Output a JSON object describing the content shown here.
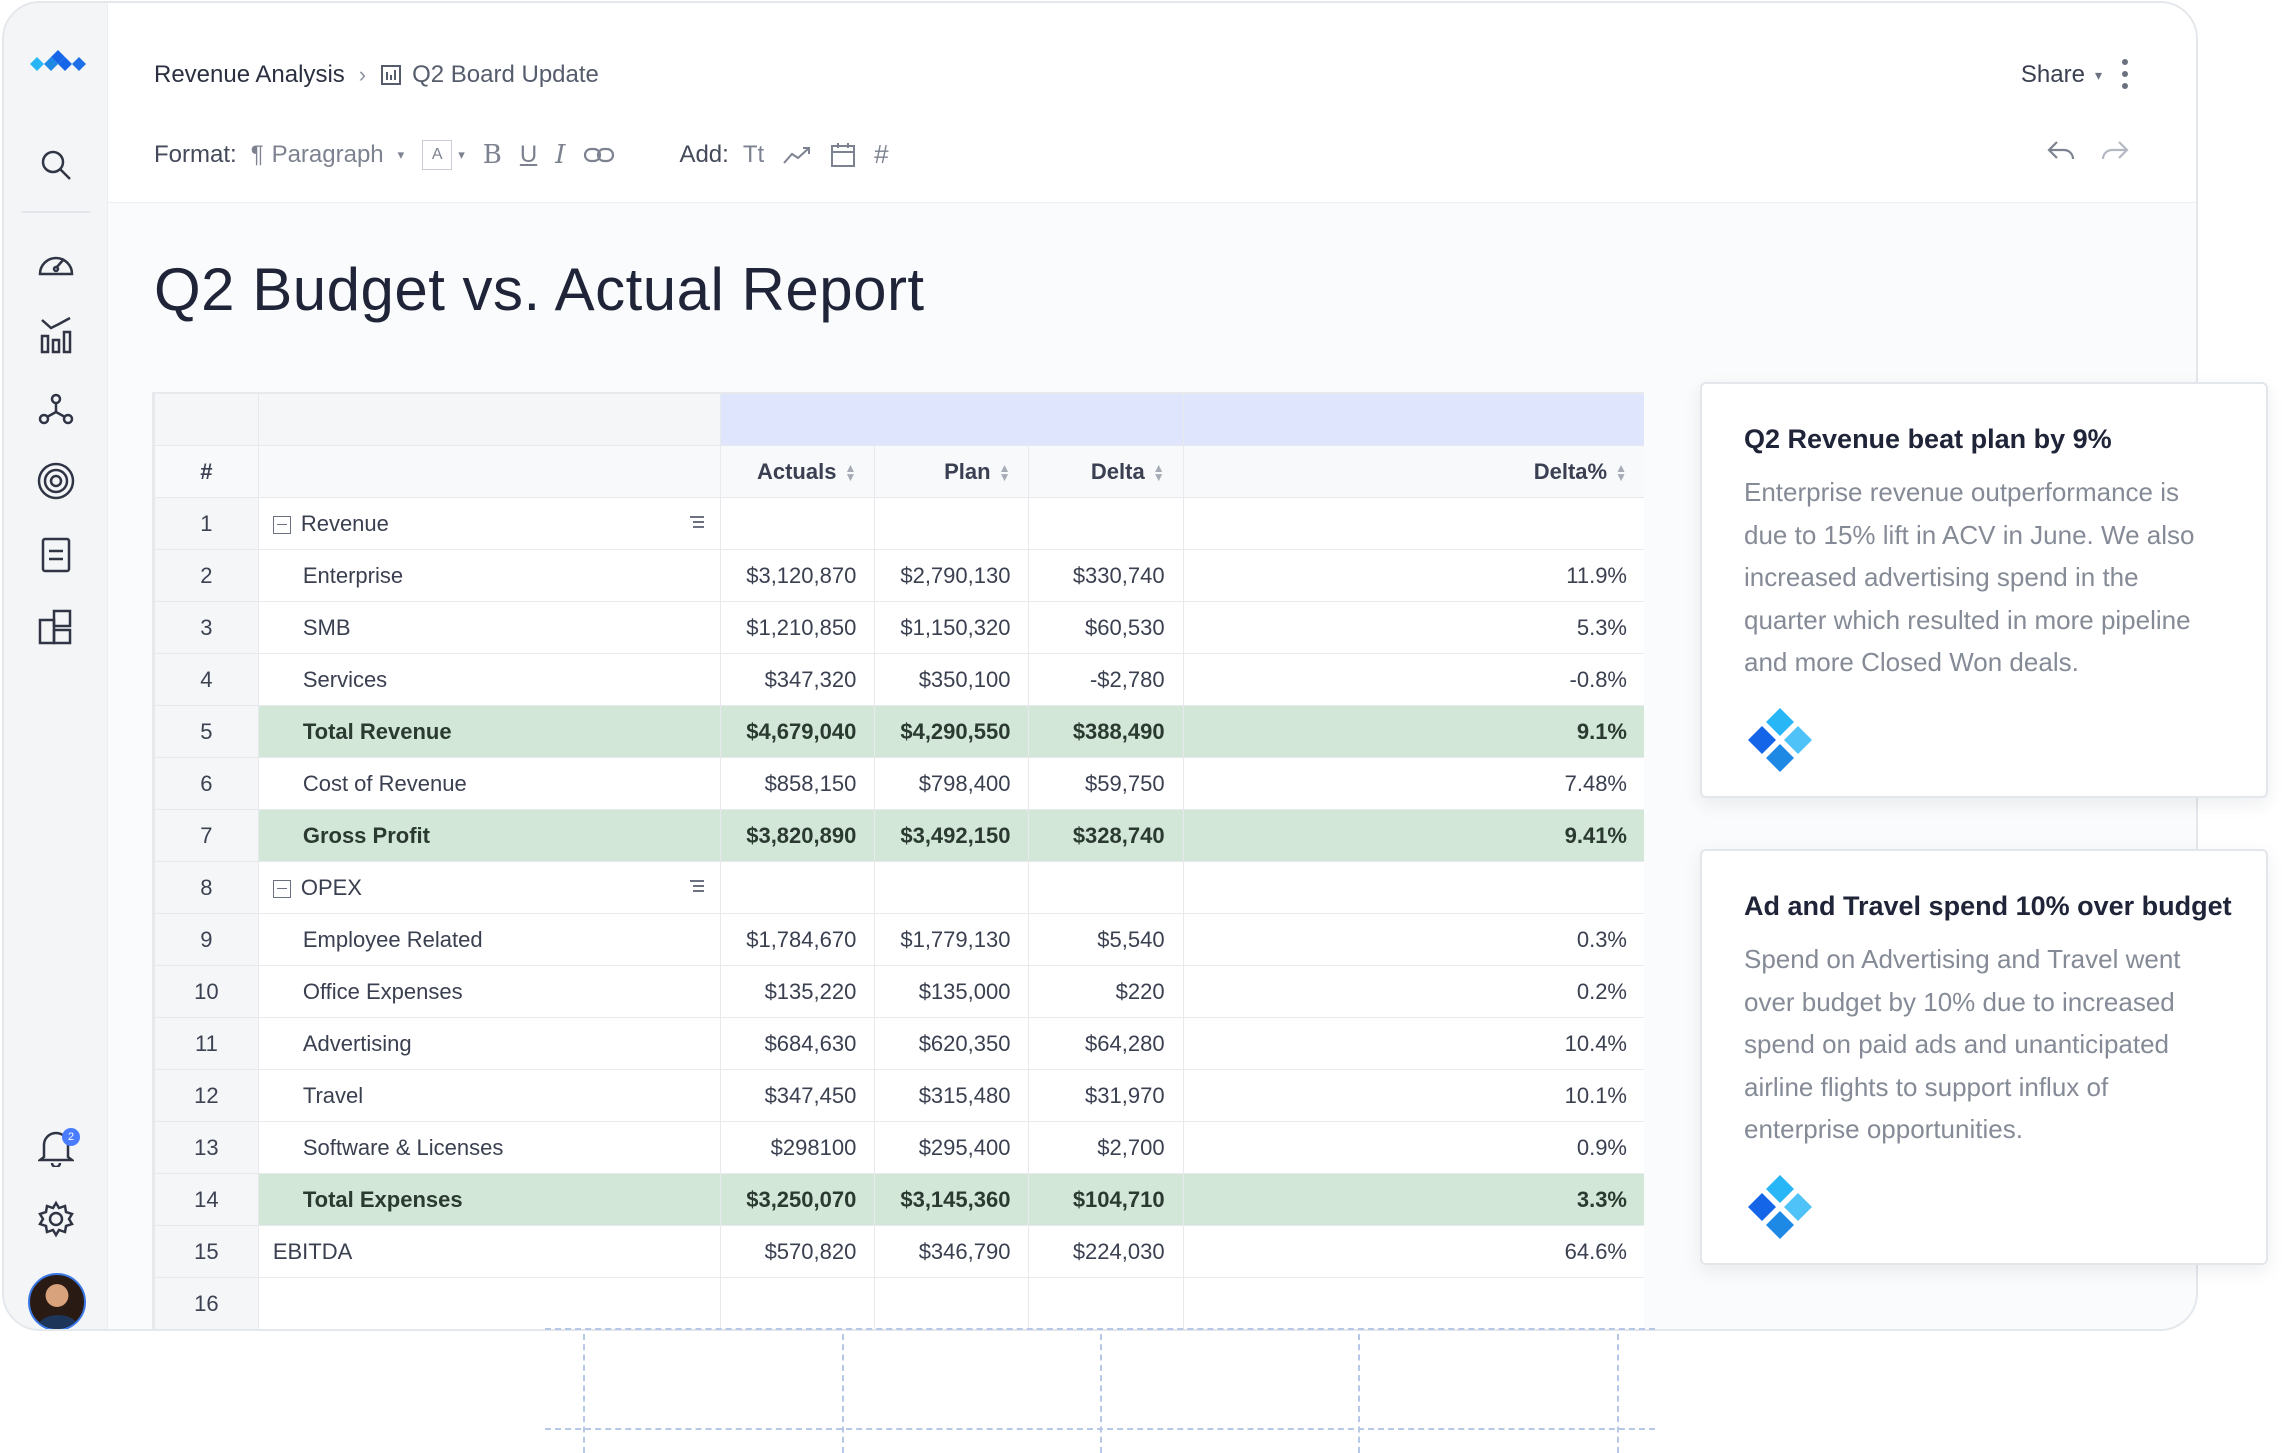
{
  "breadcrumb": {
    "root": "Revenue Analysis",
    "leaf": "Q2 Board Update"
  },
  "header": {
    "share_label": "Share"
  },
  "format_bar": {
    "format_label": "Format:",
    "paragraph_label": "Paragraph",
    "font_box": "A",
    "add_label": "Add:",
    "text_tool": "Tt"
  },
  "document": {
    "title": "Q2 Budget vs. Actual Report"
  },
  "notifications": {
    "count": "2"
  },
  "colors": {
    "accent": "#4a7cff",
    "total_row": "#d3e7d9",
    "header_band": "#dfe5fd",
    "logo_light": "#4fc3f7",
    "logo_dark": "#1565e8"
  },
  "table": {
    "index_header": "#",
    "columns": [
      "Actuals",
      "Plan",
      "Delta",
      "Delta%"
    ],
    "rows": [
      {
        "idx": "1",
        "label": "Revenue",
        "kind": "group",
        "values": [
          "",
          "",
          "",
          ""
        ]
      },
      {
        "idx": "2",
        "label": "Enterprise",
        "kind": "item",
        "values": [
          "$3,120,870",
          "$2,790,130",
          "$330,740",
          "11.9%"
        ]
      },
      {
        "idx": "3",
        "label": "SMB",
        "kind": "item",
        "values": [
          "$1,210,850",
          "$1,150,320",
          "$60,530",
          "5.3%"
        ]
      },
      {
        "idx": "4",
        "label": "Services",
        "kind": "item",
        "values": [
          "$347,320",
          "$350,100",
          "-$2,780",
          "-0.8%"
        ]
      },
      {
        "idx": "5",
        "label": "Total Revenue",
        "kind": "total",
        "values": [
          "$4,679,040",
          "$4,290,550",
          "$388,490",
          "9.1%"
        ]
      },
      {
        "idx": "6",
        "label": "Cost of Revenue",
        "kind": "item",
        "values": [
          "$858,150",
          "$798,400",
          "$59,750",
          "7.48%"
        ]
      },
      {
        "idx": "7",
        "label": "Gross Profit",
        "kind": "total",
        "values": [
          "$3,820,890",
          "$3,492,150",
          "$328,740",
          "9.41%"
        ]
      },
      {
        "idx": "8",
        "label": "OPEX",
        "kind": "group",
        "values": [
          "",
          "",
          "",
          ""
        ]
      },
      {
        "idx": "9",
        "label": "Employee Related",
        "kind": "item",
        "values": [
          "$1,784,670",
          "$1,779,130",
          "$5,540",
          "0.3%"
        ]
      },
      {
        "idx": "10",
        "label": "Office Expenses",
        "kind": "item",
        "values": [
          "$135,220",
          "$135,000",
          "$220",
          "0.2%"
        ]
      },
      {
        "idx": "11",
        "label": "Advertising",
        "kind": "item",
        "values": [
          "$684,630",
          "$620,350",
          "$64,280",
          "10.4%"
        ]
      },
      {
        "idx": "12",
        "label": "Travel",
        "kind": "item",
        "values": [
          "$347,450",
          "$315,480",
          "$31,970",
          "10.1%"
        ]
      },
      {
        "idx": "13",
        "label": "Software & Licenses",
        "kind": "item",
        "values": [
          "$298100",
          "$295,400",
          "$2,700",
          "0.9%"
        ]
      },
      {
        "idx": "14",
        "label": "Total Expenses",
        "kind": "total",
        "values": [
          "$3,250,070",
          "$3,145,360",
          "$104,710",
          "3.3%"
        ]
      },
      {
        "idx": "15",
        "label": "EBITDA",
        "kind": "plain",
        "values": [
          "$570,820",
          "$346,790",
          "$224,030",
          "64.6%"
        ]
      },
      {
        "idx": "16",
        "label": "",
        "kind": "plain",
        "values": [
          "",
          "",
          "",
          ""
        ]
      }
    ]
  },
  "insights": [
    {
      "title": "Q2 Revenue beat plan by 9%",
      "body": "Enterprise revenue outperformance is due to 15% lift in ACV in June. We also increased advertising spend in the quarter which resulted in more pipeline and more Closed Won deals."
    },
    {
      "title": "Ad and Travel spend 10% over budget",
      "body": "Spend on Advertising and Travel went over budget by 10% due to increased spend on paid ads and unanticipated airline flights to support influx of enterprise opportunities."
    }
  ]
}
